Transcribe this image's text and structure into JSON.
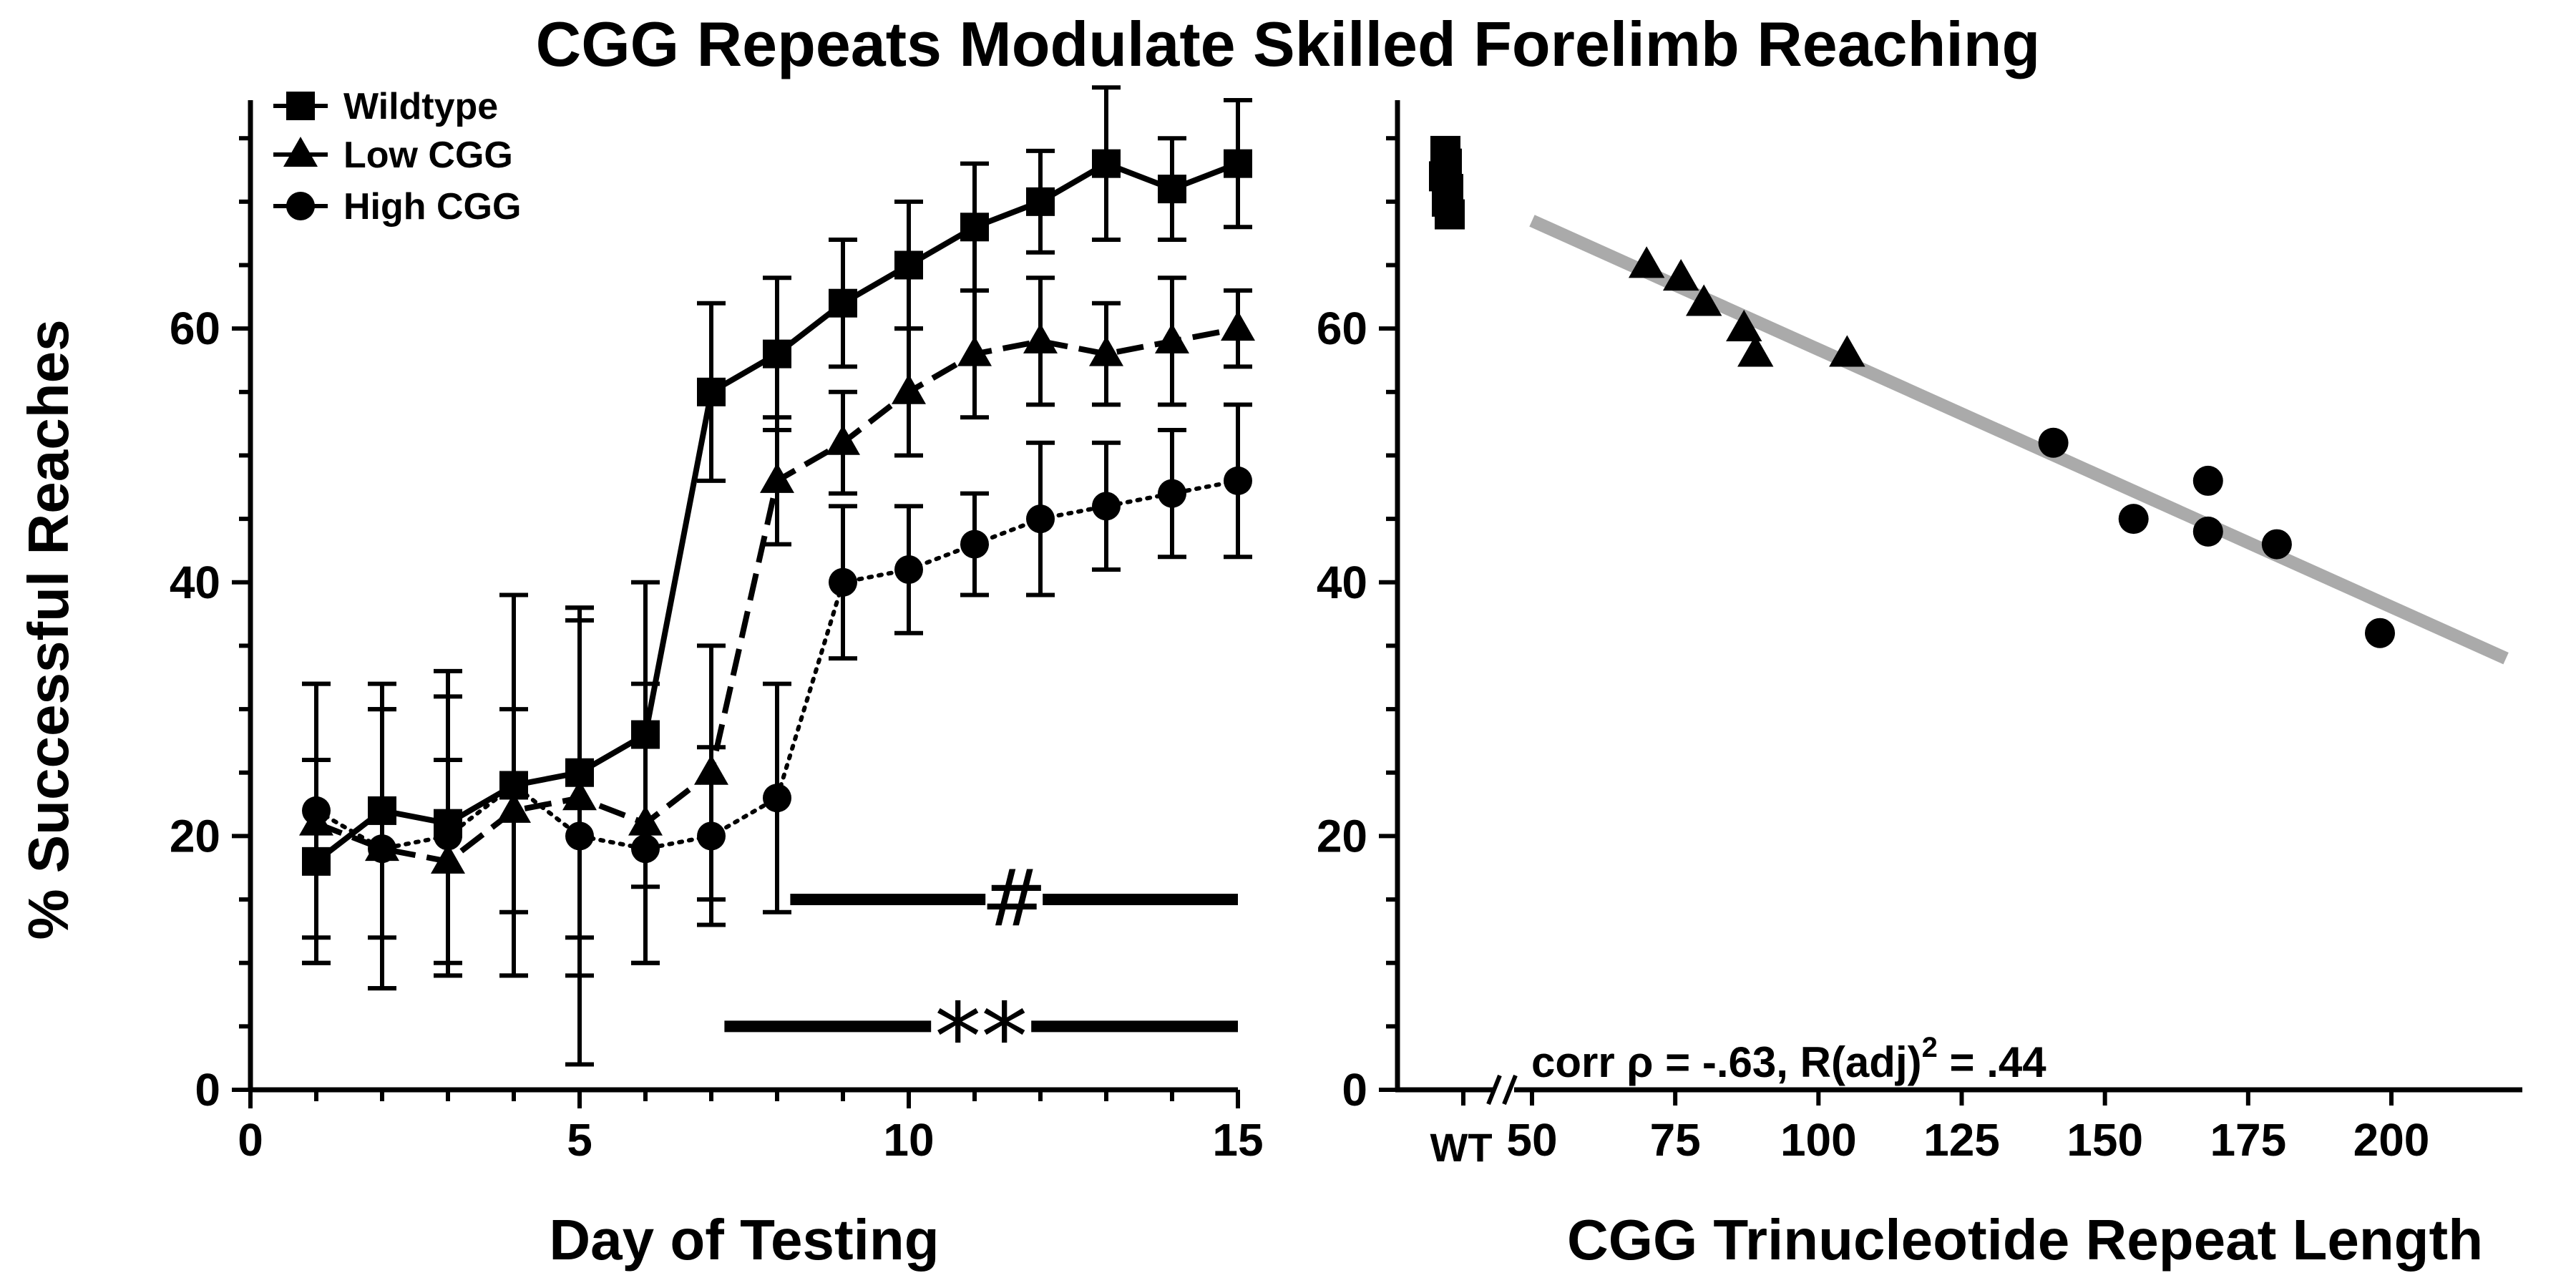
{
  "title": "CGG Repeats Modulate Skilled Forelimb Reaching",
  "chart_data": [
    {
      "type": "line",
      "xlabel": "Day of Testing",
      "ylabel": "% Successful Reaches",
      "xlim": [
        0,
        15
      ],
      "ylim": [
        0,
        78
      ],
      "x_ticks": [
        "0",
        "5",
        "10",
        "15"
      ],
      "y_ticks": [
        "0",
        "20",
        "40",
        "60"
      ],
      "legend_position": "top-left",
      "series": [
        {
          "name": "Wildtype",
          "marker": "square",
          "line_style": "solid",
          "x": [
            1,
            2,
            3,
            4,
            5,
            6,
            7,
            8,
            9,
            10,
            11,
            12,
            13,
            14,
            15
          ],
          "values": [
            18,
            22,
            21,
            24,
            25,
            28,
            55,
            58,
            62,
            65,
            68,
            70,
            73,
            71,
            73
          ],
          "error": [
            8,
            10,
            12,
            15,
            13,
            12,
            7,
            6,
            5,
            5,
            5,
            4,
            6,
            4,
            5
          ]
        },
        {
          "name": "Low CGG",
          "marker": "triangle",
          "line_style": "dashed",
          "x": [
            1,
            2,
            3,
            4,
            5,
            6,
            7,
            8,
            9,
            10,
            11,
            12,
            13,
            14,
            15
          ],
          "values": [
            21,
            19,
            18,
            22,
            23,
            21,
            25,
            48,
            51,
            55,
            58,
            59,
            58,
            59,
            60
          ],
          "error": [
            11,
            11,
            8,
            8,
            14,
            11,
            10,
            5,
            4,
            5,
            5,
            5,
            4,
            5,
            3
          ]
        },
        {
          "name": "High CGG",
          "marker": "circle",
          "line_style": "dotted",
          "x": [
            1,
            2,
            3,
            4,
            5,
            6,
            7,
            8,
            9,
            10,
            11,
            12,
            13,
            14,
            15
          ],
          "values": [
            22,
            19,
            20,
            24,
            20,
            19,
            20,
            23,
            40,
            41,
            43,
            45,
            46,
            47,
            48
          ],
          "error": [
            10,
            11,
            11,
            15,
            18,
            9,
            7,
            9,
            6,
            5,
            4,
            6,
            5,
            5,
            6
          ]
        }
      ],
      "annotations": [
        {
          "symbol": "#",
          "x_start": 8.2,
          "x_end": 15,
          "y": 15
        },
        {
          "symbol": "**",
          "x_start": 7.2,
          "x_end": 15,
          "y": 5
        }
      ]
    },
    {
      "type": "scatter",
      "xlabel": "CGG Trinucleotide Repeat Length",
      "xlim": [
        35,
        225
      ],
      "ylim": [
        0,
        78
      ],
      "x_ticks": [
        "50",
        "75",
        "100",
        "125",
        "150",
        "175",
        "200"
      ],
      "x_category_label": "WT",
      "y_ticks": [
        "0",
        "20",
        "40",
        "60"
      ],
      "annotation": "corr  ρ = -.63, R(adj)",
      "annotation_sup": "2",
      "annotation_tail": " = .44",
      "series": [
        {
          "marker": "square",
          "group": "WT",
          "values": [
            74,
            73,
            72,
            71,
            70,
            69
          ]
        },
        {
          "marker": "triangle",
          "x": [
            70,
            76,
            80,
            87,
            89,
            105
          ],
          "values": [
            65,
            64,
            62,
            60,
            58,
            58
          ]
        },
        {
          "marker": "circle",
          "x": [
            141,
            155,
            168,
            168,
            180,
            198
          ],
          "values": [
            51,
            45,
            48,
            44,
            43,
            36
          ]
        }
      ],
      "fit_line": {
        "x": [
          50,
          220
        ],
        "values": [
          68.5,
          34
        ],
        "color": "#aaaaaa"
      }
    }
  ]
}
